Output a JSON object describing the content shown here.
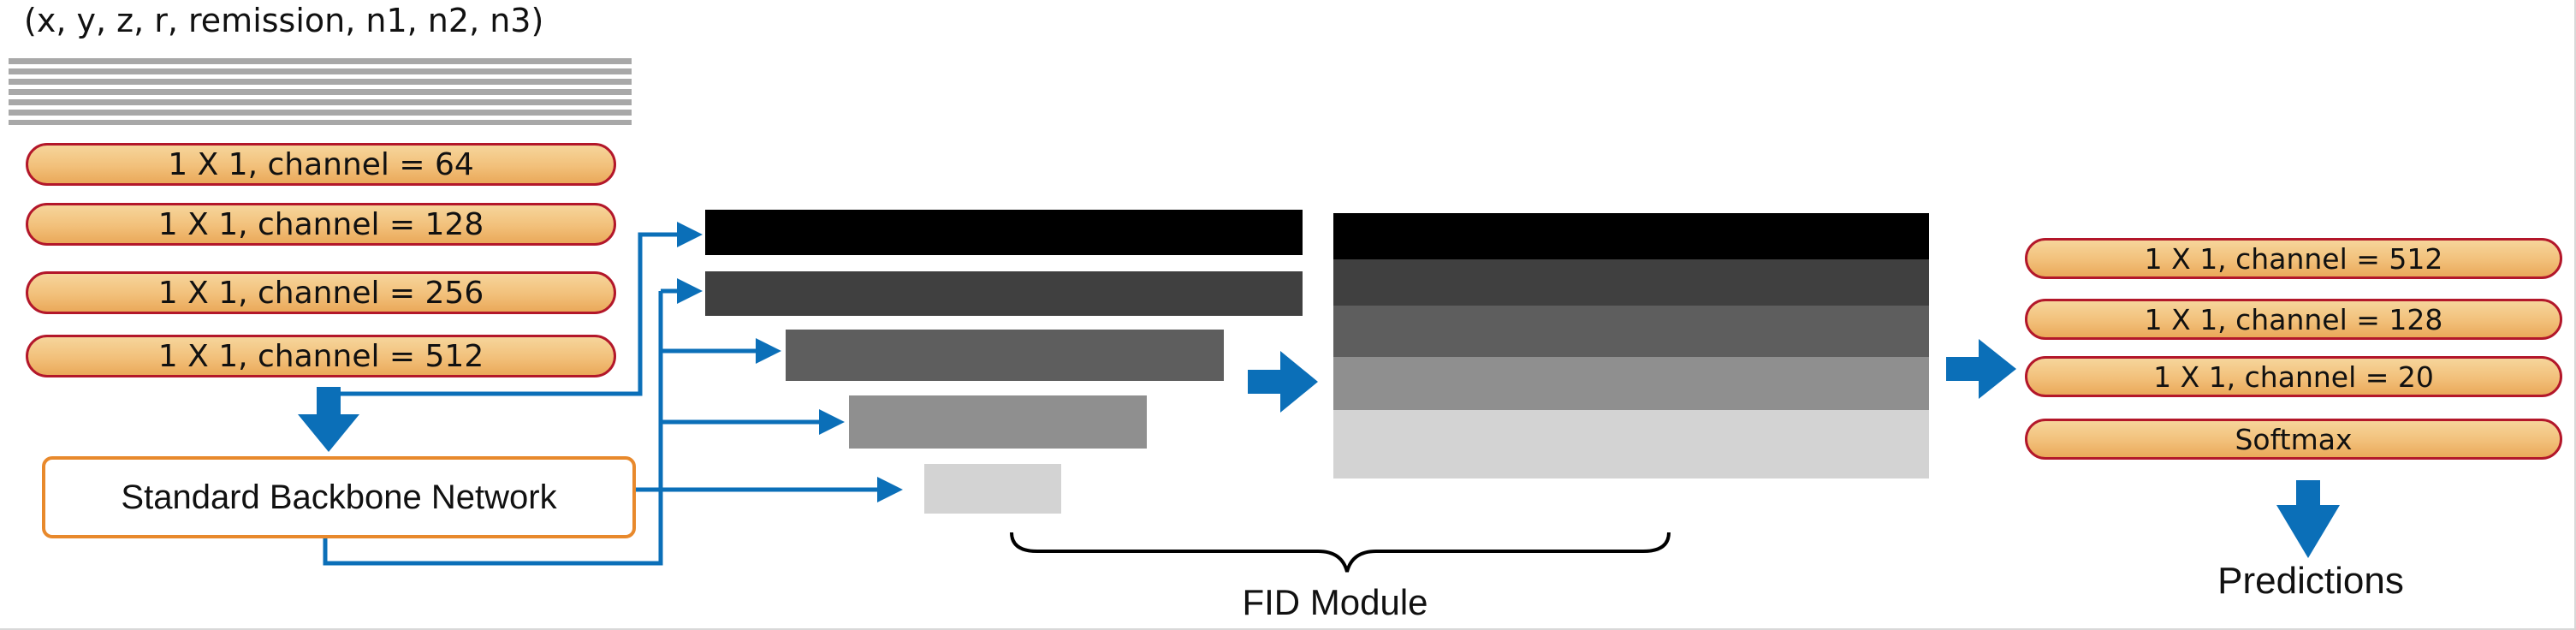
{
  "input": {
    "title": "(x, y, z, r, remission, n1, n2, n3)"
  },
  "encoder_layers": [
    "1 X 1, channel = 64",
    "1 X 1, channel = 128",
    "1 X 1, channel = 256",
    "1 X 1, channel = 512"
  ],
  "backbone": {
    "label": "Standard Backbone Network"
  },
  "fid": {
    "label": "FID Module"
  },
  "head_layers": [
    "1 X 1, channel = 512",
    "1 X 1, channel = 128",
    "1 X 1, channel = 20",
    "Softmax"
  ],
  "output": {
    "label": "Predictions"
  },
  "colors": {
    "pill_fill": "#f2c07a",
    "pill_border": "#b3172a",
    "backbone_border": "#e8892c",
    "arrow_blue": "#0b6fb8",
    "level_1": "#000000",
    "level_2": "#404040",
    "level_3": "#5e5e5e",
    "level_4": "#8f8f8f",
    "level_5": "#d3d3d3"
  }
}
